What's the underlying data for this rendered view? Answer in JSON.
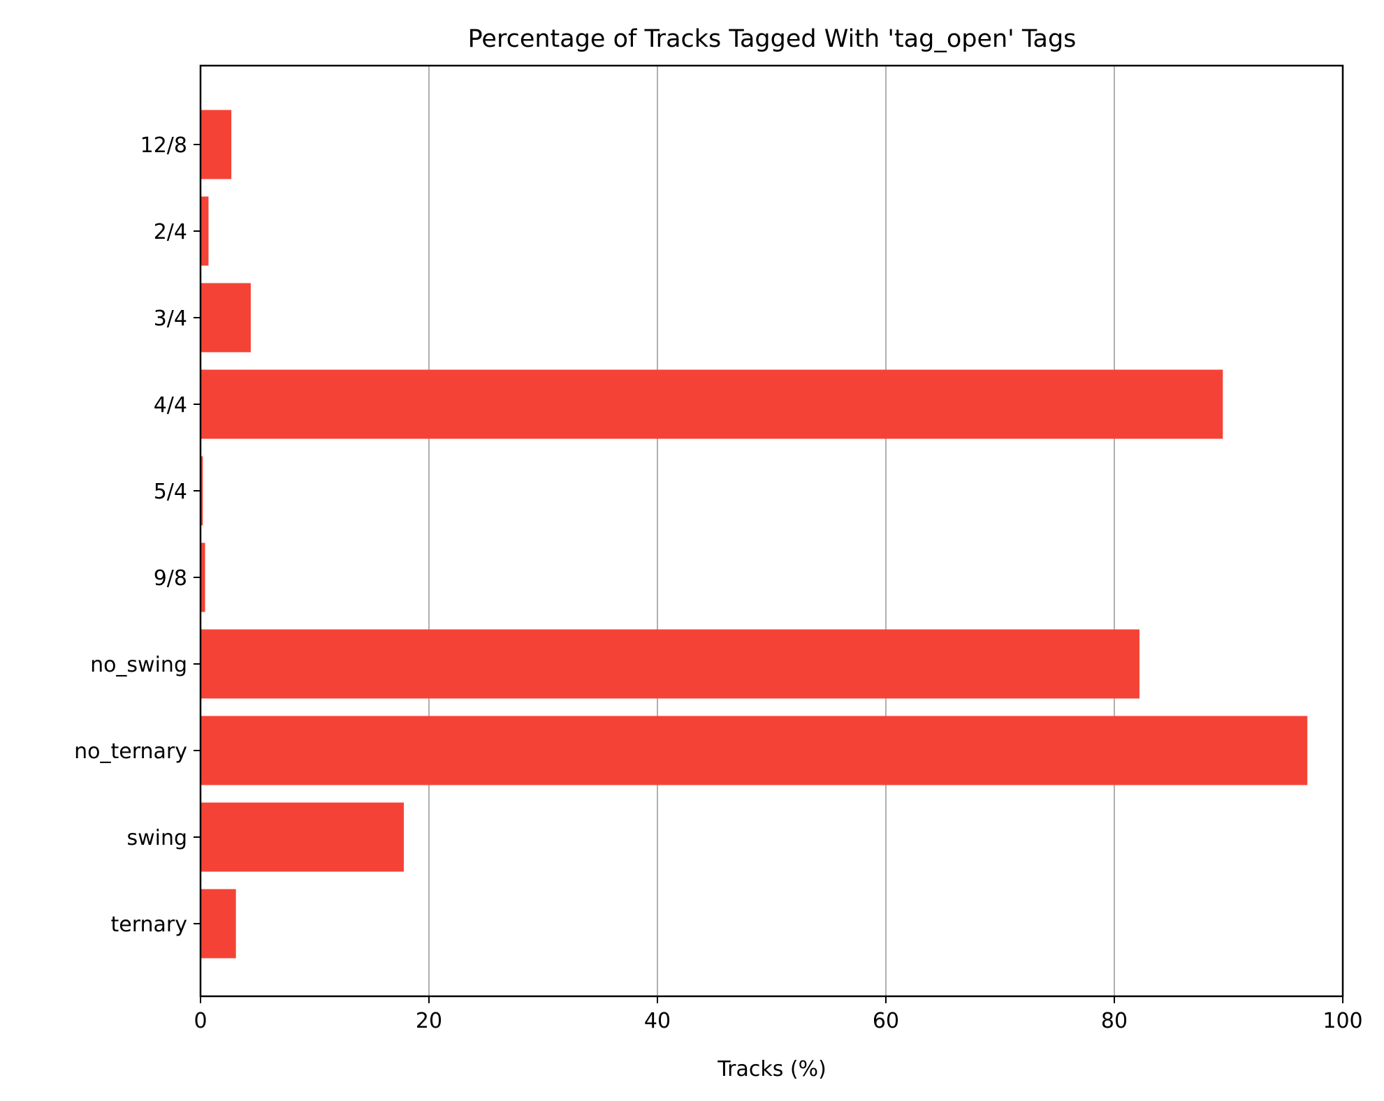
{
  "chart_data": {
    "type": "bar",
    "orientation": "horizontal",
    "title": "Percentage of Tracks Tagged With 'tag_open' Tags",
    "xlabel": "Tracks (%)",
    "ylabel": "",
    "categories": [
      "12/8",
      "2/4",
      "3/4",
      "4/4",
      "5/4",
      "9/8",
      "no_swing",
      "no_ternary",
      "swing",
      "ternary"
    ],
    "values": [
      2.7,
      0.7,
      4.4,
      89.5,
      0.2,
      0.4,
      82.2,
      96.9,
      17.8,
      3.1
    ],
    "xlim": [
      0,
      100
    ],
    "xticks": [
      "0",
      "20",
      "40",
      "60",
      "80",
      "100"
    ],
    "grid": "x",
    "bar_color": "#f44336",
    "legend": "none"
  }
}
